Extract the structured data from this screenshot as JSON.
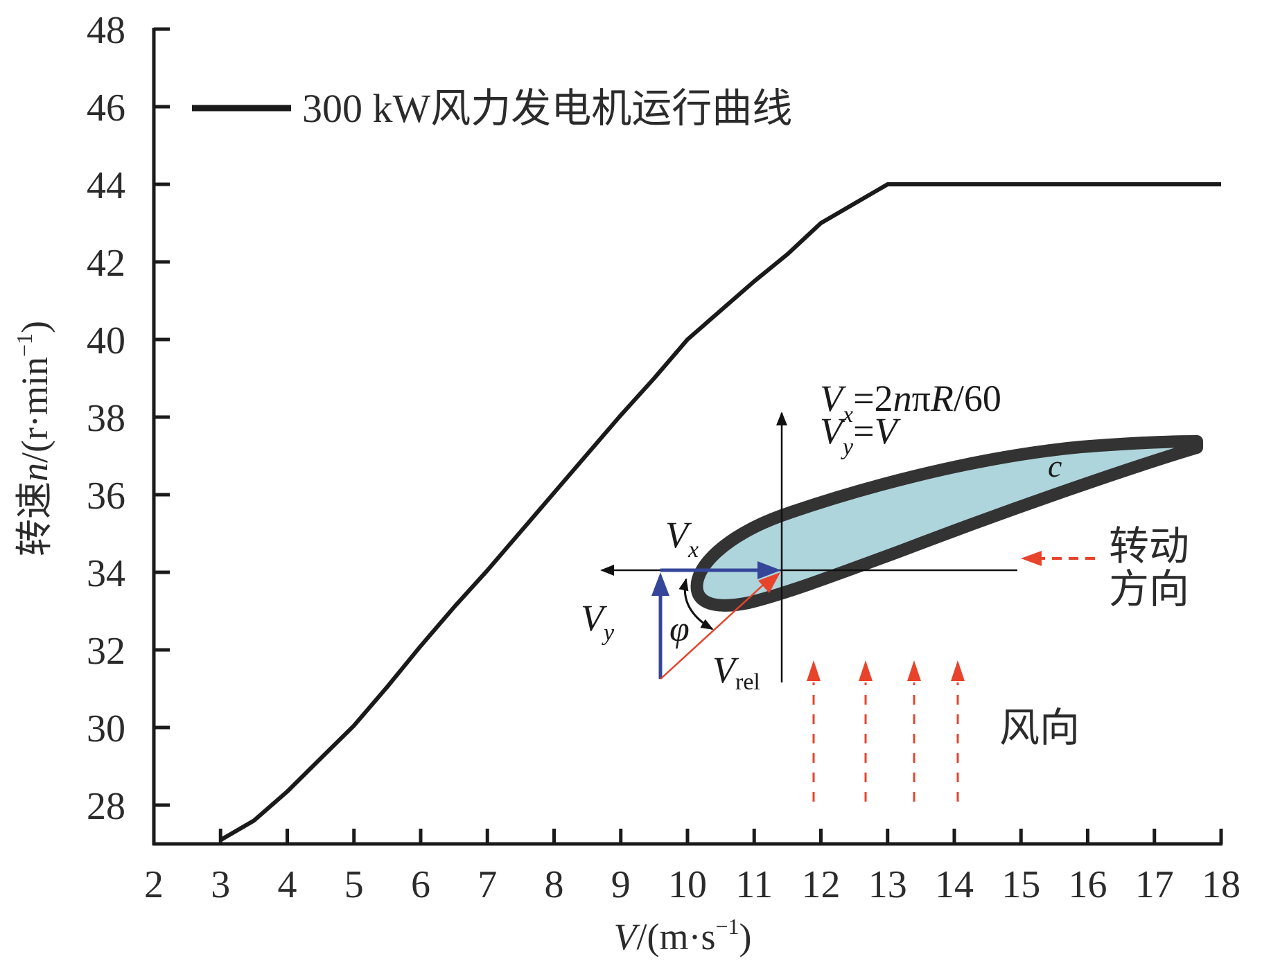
{
  "chart_data": {
    "type": "line",
    "title": "",
    "xlabel": "V/(m·s⁻¹)",
    "xlabel_parts": {
      "var": "V",
      "unit": "/(m·s",
      "sup": "−1",
      "close": ")"
    },
    "ylabel": "转速n/(r·min⁻¹)",
    "ylabel_parts": {
      "cjk": "转速",
      "var": "n",
      "unit": "/(r·min",
      "sup": "−1",
      "close": ")"
    },
    "xlim": [
      2,
      18
    ],
    "ylim": [
      27,
      48
    ],
    "x_ticks": [
      2,
      3,
      4,
      5,
      6,
      7,
      8,
      9,
      10,
      11,
      12,
      13,
      14,
      15,
      16,
      17,
      18
    ],
    "y_ticks": [
      28,
      30,
      32,
      34,
      36,
      38,
      40,
      42,
      44,
      46,
      48
    ],
    "grid": false,
    "legend": {
      "position": "top-left",
      "entries": [
        "300 kW风力发电机运行曲线"
      ]
    },
    "series": [
      {
        "name": "300 kW风力发电机运行曲线",
        "color": "#1a1a1a",
        "x": [
          3.0,
          3.5,
          4.0,
          4.5,
          5.0,
          5.5,
          6.0,
          6.5,
          7.0,
          7.5,
          8.0,
          8.5,
          9.0,
          9.5,
          10.0,
          10.5,
          11.0,
          11.5,
          12.0,
          12.5,
          13.0,
          14.0,
          15.0,
          16.0,
          17.0,
          18.0
        ],
        "y": [
          27.1,
          27.6,
          28.35,
          29.2,
          30.05,
          31.05,
          32.1,
          33.1,
          34.05,
          35.05,
          36.05,
          37.05,
          38.05,
          39.0,
          40.0,
          40.75,
          41.5,
          42.2,
          43.0,
          43.5,
          44.0,
          44.0,
          44.0,
          44.0,
          44.0,
          44.0
        ]
      }
    ]
  },
  "inset": {
    "formula_vx": {
      "var": "V",
      "sub": "x",
      "rest_a": "=2",
      "n": "n",
      "pi": "π",
      "R": "R",
      "rest_b": "/60"
    },
    "formula_vy": {
      "var": "V",
      "sub": "y",
      "eq": "=",
      "rhs": "V"
    },
    "label_vx": {
      "var": "V",
      "sub": "x"
    },
    "label_vy": {
      "var": "V",
      "sub": "y"
    },
    "label_vrel": {
      "var": "V",
      "sub": "rel"
    },
    "label_phi": "φ",
    "label_chord": "c",
    "rotation_label_1": "转动",
    "rotation_label_2": "方向",
    "wind_label": "风向",
    "colors": {
      "airfoil_fill": "#afd5dc",
      "airfoil_outline": "#333333",
      "velocity_blue": "#35469a",
      "relative_red": "#e8432b",
      "dashed_red": "#e8432b"
    }
  }
}
